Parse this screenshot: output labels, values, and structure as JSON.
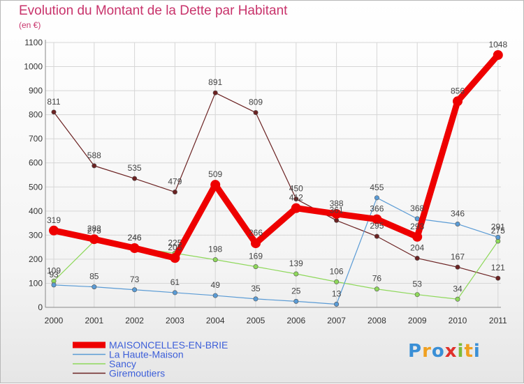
{
  "title": "Evolution du Montant de la Dette par Habitant",
  "subtitle": "(en €)",
  "logo_text": "Proxiti",
  "chart_data": {
    "type": "line",
    "title": "Evolution du Montant de la Dette par Habitant",
    "subtitle": "(en €)",
    "x": [
      "2000",
      "2001",
      "2002",
      "2003",
      "2004",
      "2005",
      "2006",
      "2007",
      "2008",
      "2009",
      "2010",
      "2011"
    ],
    "ylim": [
      0,
      1100
    ],
    "yticks": [
      0,
      100,
      200,
      300,
      400,
      500,
      600,
      700,
      800,
      900,
      1000,
      1100
    ],
    "grid": true,
    "legend_position": "bottom-left",
    "series": [
      {
        "name": "Giremoutiers",
        "color": "#6b2222",
        "values": [
          811,
          588,
          535,
          479,
          891,
          809,
          450,
          361,
          295,
          204,
          167,
          121
        ]
      },
      {
        "name": "Sancy",
        "color": "#8ed85a",
        "values": [
          109,
          275,
          246,
          225,
          198,
          169,
          139,
          106,
          76,
          53,
          34,
          275
        ]
      },
      {
        "name": "La Haute-Maison",
        "color": "#5a9bd5",
        "values": [
          93,
          85,
          73,
          61,
          49,
          35,
          25,
          13,
          455,
          368,
          346,
          291
        ]
      },
      {
        "name": "MAISONCELLES-EN-BRIE",
        "color": "#ee0000",
        "values": [
          319,
          283,
          246,
          205,
          509,
          266,
          412,
          388,
          366,
          293,
          856,
          1048
        ]
      }
    ],
    "legend_order": [
      "MAISONCELLES-EN-BRIE",
      "La Haute-Maison",
      "Sancy",
      "Giremoutiers"
    ]
  }
}
